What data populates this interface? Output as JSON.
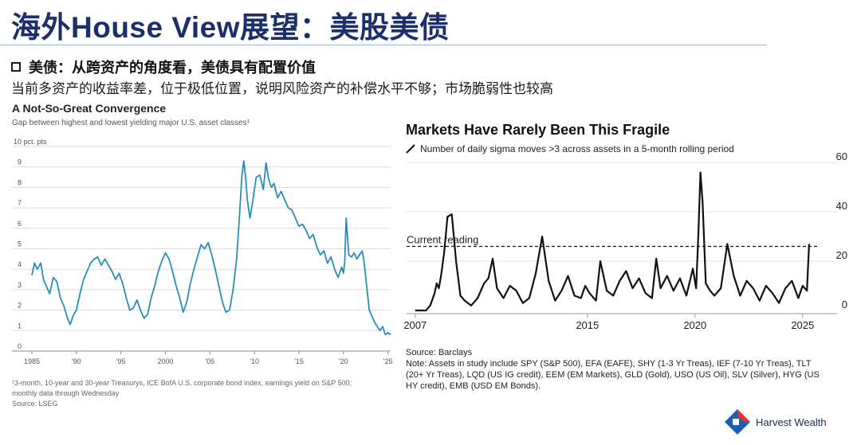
{
  "slide": {
    "title": "海外House View展望：美股美债",
    "bullet": "美债：从跨资产的角度看，美债具有配置价值",
    "subline": "当前多资产的收益率差，位于极低位置，说明风险资产的补偿水平不够；市场脆弱性也较高",
    "logo_text": "Harvest Wealth",
    "logo_icon": "harvest-diamond-icon"
  },
  "chart_data": [
    {
      "type": "line",
      "title": "A Not-So-Great Convergence",
      "subtitle": "Gap between highest and lowest yielding major U.S. asset classes¹",
      "ylabel": "10 pct. pts",
      "ylim": [
        0,
        10
      ],
      "xlim": [
        1985,
        2025.3
      ],
      "y_ticks": [
        "0",
        "1",
        "2",
        "3",
        "4",
        "5",
        "6",
        "7",
        "8",
        "9"
      ],
      "x_tick_values": [
        1985,
        1990,
        1995,
        2000,
        2005,
        2010,
        2015,
        2020,
        2025
      ],
      "x_tick_labels": [
        "1985",
        "'90",
        "'95",
        "2000",
        "'05",
        "'10",
        "'15",
        "'20",
        "'25"
      ],
      "grid": "horizontal",
      "color": "#2b8dba",
      "x": [
        1985.0,
        1985.3,
        1985.6,
        1986.0,
        1986.3,
        1986.6,
        1987.0,
        1987.4,
        1987.8,
        1988.2,
        1988.6,
        1989.0,
        1989.3,
        1989.7,
        1990.0,
        1990.4,
        1990.8,
        1991.2,
        1991.6,
        1992.0,
        1992.4,
        1992.8,
        1993.2,
        1993.6,
        1994.0,
        1994.4,
        1994.8,
        1995.2,
        1995.6,
        1996.0,
        1996.4,
        1996.8,
        1997.2,
        1997.6,
        1998.0,
        1998.4,
        1998.8,
        1999.2,
        1999.6,
        2000.0,
        2000.4,
        2000.8,
        2001.2,
        2001.6,
        2002.0,
        2002.4,
        2002.8,
        2003.2,
        2003.6,
        2004.0,
        2004.4,
        2004.8,
        2005.2,
        2005.6,
        2006.0,
        2006.4,
        2006.8,
        2007.2,
        2007.6,
        2008.0,
        2008.3,
        2008.6,
        2008.8,
        2009.0,
        2009.2,
        2009.5,
        2009.8,
        2010.2,
        2010.6,
        2011.0,
        2011.3,
        2011.6,
        2011.9,
        2012.2,
        2012.6,
        2013.0,
        2013.4,
        2013.8,
        2014.2,
        2014.6,
        2015.0,
        2015.4,
        2015.8,
        2016.2,
        2016.6,
        2017.0,
        2017.4,
        2017.8,
        2018.2,
        2018.6,
        2019.0,
        2019.4,
        2019.8,
        2020.0,
        2020.15,
        2020.3,
        2020.6,
        2020.9,
        2021.2,
        2021.5,
        2021.8,
        2022.1,
        2022.3,
        2022.6,
        2022.9,
        2023.2,
        2023.5,
        2023.8,
        2024.1,
        2024.4,
        2024.7,
        2025.0,
        2025.3
      ],
      "y": [
        3.7,
        4.3,
        4.0,
        4.3,
        3.5,
        3.2,
        2.8,
        3.6,
        3.4,
        2.6,
        2.2,
        1.6,
        1.3,
        1.8,
        2.0,
        2.8,
        3.5,
        3.9,
        4.3,
        4.5,
        4.6,
        4.2,
        4.5,
        4.2,
        3.9,
        3.5,
        3.8,
        3.3,
        2.6,
        2.0,
        2.1,
        2.5,
        2.0,
        1.6,
        1.8,
        2.6,
        3.2,
        3.9,
        4.4,
        4.8,
        4.5,
        3.9,
        3.2,
        2.6,
        1.9,
        2.4,
        3.3,
        4.0,
        4.6,
        5.2,
        5.0,
        5.3,
        4.7,
        4.0,
        3.2,
        2.4,
        1.9,
        2.0,
        3.0,
        4.5,
        6.5,
        8.6,
        9.3,
        8.5,
        7.4,
        6.5,
        7.3,
        8.5,
        8.6,
        7.9,
        9.2,
        8.4,
        8.0,
        8.2,
        7.5,
        7.8,
        7.4,
        7.0,
        6.9,
        6.5,
        6.1,
        6.2,
        5.9,
        5.5,
        5.7,
        5.1,
        4.7,
        4.9,
        4.3,
        4.6,
        4.0,
        3.6,
        4.1,
        3.8,
        4.4,
        6.5,
        4.7,
        4.6,
        4.8,
        4.5,
        4.7,
        4.9,
        4.4,
        3.2,
        2.0,
        1.7,
        1.4,
        1.2,
        1.0,
        1.2,
        0.8,
        0.9,
        0.8
      ]
    },
    {
      "type": "line",
      "title": "Markets Have Rarely Been This Fragile",
      "legend": "Number of daily sigma moves >3 across assets in a 5-month rolling period",
      "ylim": [
        0,
        62
      ],
      "xlim": [
        2006.6,
        2026.6
      ],
      "y_ticks": [
        0,
        20,
        40,
        60
      ],
      "x_ticks": [
        2007,
        2015,
        2020,
        2025
      ],
      "grid": "horizontal",
      "color": "#111111",
      "reference_line": {
        "label": "Current reading",
        "value": 26
      },
      "x": [
        2007.0,
        2007.3,
        2007.5,
        2007.7,
        2007.9,
        2008.0,
        2008.1,
        2008.2,
        2008.35,
        2008.5,
        2008.7,
        2008.9,
        2009.1,
        2009.3,
        2009.6,
        2009.9,
        2010.2,
        2010.4,
        2010.6,
        2010.8,
        2011.1,
        2011.4,
        2011.7,
        2012.0,
        2012.3,
        2012.6,
        2012.9,
        2013.2,
        2013.5,
        2013.8,
        2014.1,
        2014.4,
        2014.7,
        2014.9,
        2015.1,
        2015.4,
        2015.6,
        2015.9,
        2016.2,
        2016.5,
        2016.8,
        2017.1,
        2017.4,
        2017.7,
        2018.0,
        2018.2,
        2018.4,
        2018.7,
        2019.0,
        2019.3,
        2019.6,
        2019.9,
        2020.05,
        2020.15,
        2020.25,
        2020.35,
        2020.5,
        2020.7,
        2020.9,
        2021.2,
        2021.5,
        2021.8,
        2022.1,
        2022.4,
        2022.7,
        2023.0,
        2023.3,
        2023.6,
        2023.9,
        2024.2,
        2024.5,
        2024.8,
        2025.0,
        2025.2,
        2025.3
      ],
      "y": [
        0,
        0,
        0,
        2,
        7,
        11,
        9,
        14,
        24,
        38,
        39,
        20,
        6,
        4,
        2,
        5,
        11,
        13,
        21,
        9,
        5,
        10,
        8,
        3,
        5,
        15,
        30,
        12,
        4,
        8,
        14,
        6,
        5,
        10,
        7,
        4,
        20,
        8,
        6,
        12,
        16,
        9,
        13,
        7,
        5,
        21,
        9,
        14,
        8,
        13,
        6,
        17,
        9,
        30,
        56,
        44,
        11,
        8,
        6,
        9,
        27,
        14,
        6,
        12,
        9,
        4,
        10,
        7,
        3,
        9,
        12,
        5,
        10,
        8,
        27
      ]
    }
  ],
  "left_footnote": [
    "¹3-month, 10-year and 30-year Treasurys, ICE BofA U.S. corporate bond index, earnings yield on S&P 500;",
    "monthly data through Wednesday",
    "Source: LSEG"
  ],
  "right_footnote": [
    "Source: Barclays",
    "Note: Assets in study include SPY (S&P 500), EFA (EAFE), SHY (1-3 Yr Treas), IEF (7-10 Yr Treas), TLT",
    "(20+ Yr Treas), LQD (US IG credit), EEM (EM Markets), GLD (Gold), USO (US Oil), SLV (Silver), HYG (US",
    "HY credit), EMB (USD EM Bonds)."
  ]
}
